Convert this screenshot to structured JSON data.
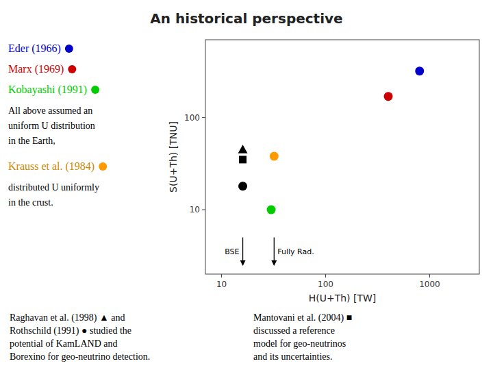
{
  "chart_data": {
    "type": "scatter",
    "title": "An historical perspective",
    "xlabel": "H(U+Th) [TW]",
    "ylabel": "S(U+Th) [TNU]",
    "log": true,
    "xlim": [
      7,
      3000
    ],
    "ylim": [
      2,
      700
    ],
    "xticks": [
      10,
      100,
      1000
    ],
    "yticks": [
      10,
      100
    ],
    "series": [
      {
        "x": [
          800
        ],
        "values": [
          320
        ],
        "color": "#0000cc",
        "marker": "circle"
      },
      {
        "x": [
          400
        ],
        "values": [
          170
        ],
        "color": "#cc0000",
        "marker": "circle"
      },
      {
        "x": [
          30
        ],
        "values": [
          10
        ],
        "color": "#00cc00",
        "marker": "circle"
      },
      {
        "x": [
          16
        ],
        "values": [
          18
        ],
        "color": "#000000",
        "marker": "circle"
      },
      {
        "x": [
          32
        ],
        "values": [
          38
        ],
        "color": "#ff9900",
        "marker": "circle"
      },
      {
        "x": [
          16
        ],
        "values": [
          45
        ],
        "color": "#000000",
        "marker": "triangle"
      },
      {
        "x": [
          16
        ],
        "values": [
          35
        ],
        "color": "#000000",
        "marker": "square"
      }
    ],
    "annotations": [
      {
        "text": "BSE",
        "x": 16,
        "y": 5,
        "y_end": 2.5
      },
      {
        "text": "Fully Rad.",
        "x": 32,
        "y": 5,
        "y_end": 2.5
      }
    ],
    "notes": [
      {
        "text": "Eder (1966)",
        "color": "#0000cc",
        "dot_color": "#0000cc"
      },
      {
        "text": "Marx (1969)",
        "color": "#cc0000",
        "dot_color": "#cc0000"
      },
      {
        "text": "Kobayashi (1991)",
        "color": "#00cc00",
        "dot_color": "#00cc00"
      },
      {
        "text": "All above assumed an"
      },
      {
        "text": "uniform U distribution"
      },
      {
        "text": "in the Earth,"
      },
      {
        "text": "Krauss et al. (1984)",
        "color": "#cc8800",
        "dot_color": "#ff9900"
      },
      {
        "text": "distributed U uniformly"
      },
      {
        "text": "in the crust."
      }
    ],
    "footnotes_left": [
      "Raghavan et al. (1998) ▲ and",
      "Rothschild (1991) ● studied the",
      "potential of KamLAND and",
      "Borexino for geo-neutrino detection."
    ],
    "footnotes_right": [
      "Mantovani et al. (2004) ■",
      "discussed a reference",
      "model for geo-neutrinos",
      "and its uncertainties."
    ]
  }
}
